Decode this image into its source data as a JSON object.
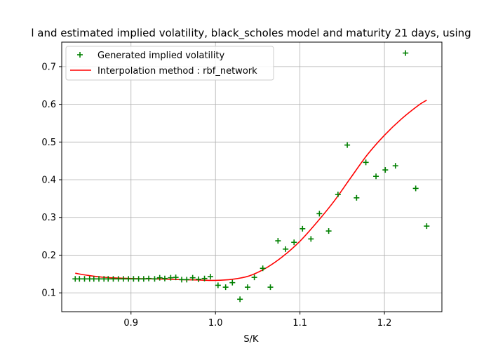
{
  "chart_data": {
    "type": "scatter",
    "title": "l and estimated implied volatility, black_scholes model and maturity 21 days, using",
    "xlabel": "S/K",
    "ylabel": "",
    "xlim": [
      0.818,
      1.268
    ],
    "ylim": [
      0.05,
      0.765
    ],
    "xticks": [
      {
        "value": 0.9,
        "label": "0.9"
      },
      {
        "value": 1.0,
        "label": "1.0"
      },
      {
        "value": 1.1,
        "label": "1.1"
      },
      {
        "value": 1.2,
        "label": "1.2"
      }
    ],
    "yticks": [
      {
        "value": 0.1,
        "label": "0.1"
      },
      {
        "value": 0.2,
        "label": "0.2"
      },
      {
        "value": 0.3,
        "label": "0.3"
      },
      {
        "value": 0.4,
        "label": "0.4"
      },
      {
        "value": 0.5,
        "label": "0.5"
      },
      {
        "value": 0.6,
        "label": "0.6"
      },
      {
        "value": 0.7,
        "label": "0.7"
      }
    ],
    "grid": true,
    "legend": {
      "position": "top-left",
      "entries": [
        {
          "label": "Generated implied volatility",
          "marker": "plus",
          "color": "#008000"
        },
        {
          "label": "Interpolation method : rbf_network",
          "marker": "line",
          "color": "#ff0000"
        }
      ]
    },
    "series": [
      {
        "name": "Generated implied volatility",
        "type": "scatter",
        "color": "#008000",
        "points": [
          [
            0.834,
            0.137
          ],
          [
            0.839,
            0.137
          ],
          [
            0.845,
            0.137
          ],
          [
            0.851,
            0.137
          ],
          [
            0.856,
            0.137
          ],
          [
            0.862,
            0.137
          ],
          [
            0.868,
            0.137
          ],
          [
            0.873,
            0.137
          ],
          [
            0.879,
            0.137
          ],
          [
            0.885,
            0.137
          ],
          [
            0.891,
            0.137
          ],
          [
            0.897,
            0.137
          ],
          [
            0.903,
            0.137
          ],
          [
            0.909,
            0.137
          ],
          [
            0.915,
            0.137
          ],
          [
            0.921,
            0.138
          ],
          [
            0.928,
            0.137
          ],
          [
            0.934,
            0.14
          ],
          [
            0.94,
            0.138
          ],
          [
            0.947,
            0.14
          ],
          [
            0.953,
            0.141
          ],
          [
            0.96,
            0.135
          ],
          [
            0.966,
            0.135
          ],
          [
            0.973,
            0.14
          ],
          [
            0.98,
            0.136
          ],
          [
            0.987,
            0.138
          ],
          [
            0.994,
            0.143
          ],
          [
            1.003,
            0.12
          ],
          [
            1.012,
            0.115
          ],
          [
            1.02,
            0.127
          ],
          [
            1.029,
            0.083
          ],
          [
            1.038,
            0.115
          ],
          [
            1.046,
            0.141
          ],
          [
            1.056,
            0.165
          ],
          [
            1.065,
            0.115
          ],
          [
            1.074,
            0.238
          ],
          [
            1.083,
            0.216
          ],
          [
            1.093,
            0.234
          ],
          [
            1.103,
            0.27
          ],
          [
            1.113,
            0.243
          ],
          [
            1.123,
            0.31
          ],
          [
            1.134,
            0.264
          ],
          [
            1.145,
            0.361
          ],
          [
            1.156,
            0.492
          ],
          [
            1.167,
            0.352
          ],
          [
            1.178,
            0.446
          ],
          [
            1.19,
            0.409
          ],
          [
            1.201,
            0.426
          ],
          [
            1.213,
            0.437
          ],
          [
            1.225,
            0.736
          ],
          [
            1.237,
            0.377
          ],
          [
            1.25,
            0.277
          ]
        ]
      },
      {
        "name": "Interpolation method : rbf_network",
        "type": "line",
        "color": "#ff0000",
        "points": [
          [
            0.834,
            0.152
          ],
          [
            0.85,
            0.146
          ],
          [
            0.87,
            0.141
          ],
          [
            0.9,
            0.138
          ],
          [
            0.93,
            0.137
          ],
          [
            0.96,
            0.135
          ],
          [
            0.98,
            0.134
          ],
          [
            1.0,
            0.133
          ],
          [
            1.02,
            0.136
          ],
          [
            1.04,
            0.145
          ],
          [
            1.06,
            0.166
          ],
          [
            1.08,
            0.197
          ],
          [
            1.1,
            0.237
          ],
          [
            1.12,
            0.287
          ],
          [
            1.14,
            0.342
          ],
          [
            1.16,
            0.405
          ],
          [
            1.18,
            0.467
          ],
          [
            1.2,
            0.518
          ],
          [
            1.22,
            0.561
          ],
          [
            1.24,
            0.597
          ],
          [
            1.25,
            0.611
          ]
        ]
      }
    ]
  }
}
